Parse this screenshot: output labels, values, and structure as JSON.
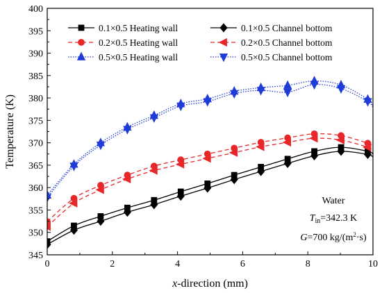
{
  "chart_data": {
    "type": "line",
    "xlabel_prefix": "x",
    "xlabel_rest": "-direction (mm)",
    "ylabel": "Temperature (K)",
    "xlim": [
      0,
      10
    ],
    "ylim": [
      345,
      400
    ],
    "xticks": [
      0,
      2,
      4,
      6,
      8,
      10
    ],
    "yticks": [
      345,
      350,
      355,
      360,
      365,
      370,
      375,
      380,
      385,
      390,
      395,
      400
    ],
    "grid": false,
    "legend_placement": "top",
    "x": [
      0,
      0.82,
      1.64,
      2.46,
      3.28,
      4.1,
      4.92,
      5.74,
      6.56,
      7.38,
      8.2,
      9.02,
      9.84,
      10
    ],
    "series": [
      {
        "name": "0.1×0.5 Heating wall",
        "color": "#000000",
        "line": "solid",
        "marker": "square",
        "values": [
          348.0,
          351.5,
          353.6,
          355.5,
          357.2,
          359.1,
          360.9,
          362.8,
          364.6,
          366.4,
          368.1,
          369.0,
          368.1,
          367.5
        ]
      },
      {
        "name": "0.1×0.5 Channel bottom",
        "color": "#000000",
        "line": "solid",
        "marker": "diamond",
        "values": [
          347.3,
          350.5,
          352.5,
          354.5,
          356.2,
          358.1,
          359.9,
          361.8,
          363.6,
          365.4,
          367.1,
          368.1,
          367.4,
          366.8
        ]
      },
      {
        "name": "0.2×0.5 Heating wall",
        "color": "#e8272a",
        "line": "dashed",
        "marker": "circle",
        "values": [
          352.4,
          357.6,
          360.5,
          362.8,
          364.8,
          366.2,
          367.5,
          368.8,
          370.1,
          371.1,
          372.0,
          371.6,
          369.9,
          369.2
        ]
      },
      {
        "name": "0.2×0.5 Channel bottom",
        "color": "#e8272a",
        "line": "dashed",
        "marker": "triangle-left",
        "values": [
          351.3,
          356.5,
          359.5,
          361.9,
          363.8,
          365.2,
          366.5,
          367.8,
          369.1,
          370.1,
          371.0,
          370.6,
          369.0,
          368.2
        ]
      },
      {
        "name": "0.5×0.5 Heating wall",
        "color": "#1f3bd8",
        "line": "dotted",
        "marker": "triangle-up",
        "values": [
          358.3,
          365.2,
          370.0,
          373.5,
          376.1,
          378.7,
          379.8,
          381.5,
          382.3,
          382.8,
          383.8,
          382.9,
          379.7,
          378.2
        ]
      },
      {
        "name": "0.5×0.5 Channel bottom",
        "color": "#1f3bd8",
        "line": "dotted",
        "marker": "triangle-down",
        "values": [
          357.8,
          364.8,
          369.5,
          373.0,
          375.6,
          378.2,
          379.2,
          381.0,
          381.7,
          381.3,
          383.0,
          382.1,
          379.2,
          377.8
        ]
      }
    ],
    "annotations": {
      "fluid": "Water",
      "tin_var": "T",
      "tin_sub": "in",
      "tin_val": "=342.3 K",
      "g_var": "G",
      "g_val_a": "=700 kg/(m",
      "g_sup": "2",
      "g_val_b": "·s)"
    }
  }
}
